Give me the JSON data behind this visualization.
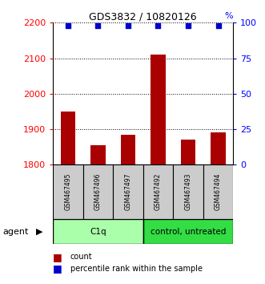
{
  "title": "GDS3832 / 10820126",
  "samples": [
    "GSM467495",
    "GSM467496",
    "GSM467497",
    "GSM467492",
    "GSM467493",
    "GSM467494"
  ],
  "bar_values": [
    1950,
    1855,
    1885,
    2110,
    1870,
    1890
  ],
  "percentile_values": [
    98,
    98,
    98,
    98,
    98,
    98
  ],
  "bar_color": "#aa0000",
  "dot_color": "#0000cc",
  "ylim_left": [
    1800,
    2200
  ],
  "yticks_left": [
    1800,
    1900,
    2000,
    2100,
    2200
  ],
  "ylim_right": [
    0,
    100
  ],
  "yticks_right": [
    0,
    25,
    50,
    75,
    100
  ],
  "group_c1q_color": "#aaffaa",
  "group_ctrl_color": "#33dd44",
  "group_c1q_label": "C1q",
  "group_ctrl_label": "control, untreated",
  "sample_box_color": "#cccccc",
  "agent_label": "agent",
  "legend_count_label": "count",
  "legend_pct_label": "percentile rank within the sample",
  "background_color": "#ffffff"
}
